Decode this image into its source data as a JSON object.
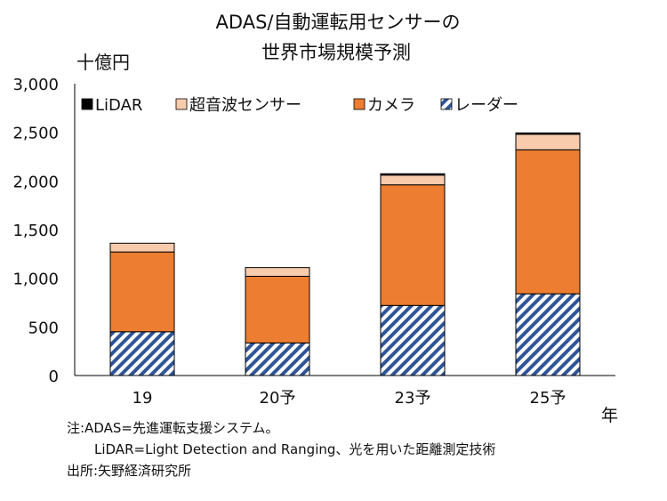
{
  "chart_data": {
    "type": "bar",
    "stacked": true,
    "title_lines": [
      "ADAS/自動運転用センサーの",
      "世界市場規模予測"
    ],
    "y_unit_label": "十億円",
    "x_unit_label": "年",
    "categories": [
      "19",
      "20予",
      "23予",
      "25予"
    ],
    "ylim": [
      0,
      3000
    ],
    "y_ticks": [
      0,
      500,
      1000,
      1500,
      2000,
      2500,
      3000
    ],
    "y_tick_labels": [
      "0",
      "500",
      "1,000",
      "1,500",
      "2,000",
      "2,500",
      "3,000"
    ],
    "grid": false,
    "legend_placement": "top",
    "series": [
      {
        "name": "レーダー",
        "values": [
          450,
          335,
          720,
          840
        ],
        "color": "#2f5597",
        "pattern": "hatch"
      },
      {
        "name": "カメラ",
        "values": [
          820,
          685,
          1240,
          1480
        ],
        "color": "#ed7d31"
      },
      {
        "name": "超音波センサー",
        "values": [
          90,
          90,
          100,
          160
        ],
        "color": "#f8cbad"
      },
      {
        "name": "LiDAR",
        "values": [
          0,
          0,
          12,
          12
        ],
        "color": "#000000"
      }
    ],
    "legend_order": [
      "LiDAR",
      "超音波センサー",
      "カメラ",
      "レーダー"
    ]
  },
  "notes": {
    "line1": "注:ADAS=先進運転支援システム。",
    "line2": "LiDAR=Light Detection and Ranging、光を用いた距離測定技術",
    "line3": "出所:矢野経済研究所"
  }
}
